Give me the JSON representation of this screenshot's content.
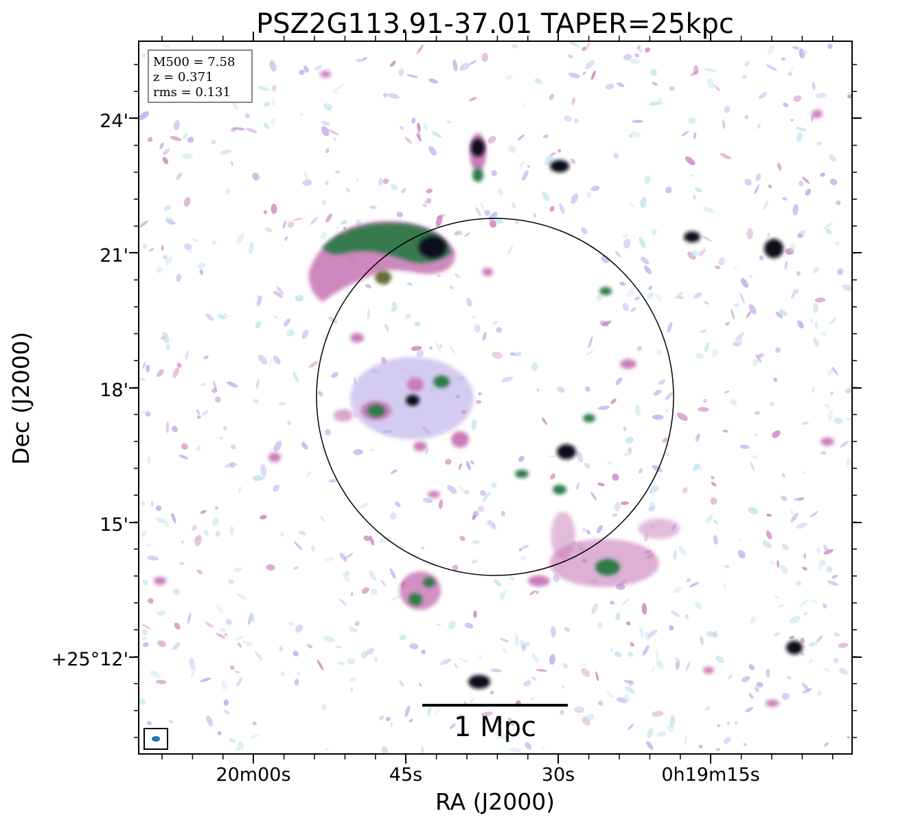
{
  "chart_data": {
    "type": "heatmap",
    "title": "PSZ2G113.91-37.01 TAPER=25kpc",
    "xlabel": "RA (J2000)",
    "ylabel": "Dec (J2000)",
    "x_ticks": [
      "20m00s",
      "45s",
      "30s",
      "0h19m15s"
    ],
    "y_ticks": [
      "24'",
      "21'",
      "18'",
      "15'",
      "+25°12'"
    ],
    "info_box": [
      "M500 = 7.58",
      "z = 0.371",
      "rms = 0.131"
    ],
    "scale_bar_label": "1 Mpc",
    "colormap": "cubehelix_r",
    "circle": {
      "ra_center": "0h19m37s",
      "dec_center": "+25°17'48\"",
      "radius_arcmin": 4.0
    },
    "sources": [
      {
        "name": "relic-north",
        "type": "extended"
      },
      {
        "name": "point-sources",
        "count": 14
      }
    ]
  },
  "colors": {
    "low": "#bfe3ec",
    "mid_low": "#b9a9e8",
    "mid": "#c97bb8",
    "mid_high": "#2f7a4a",
    "high": "#0b0b1a",
    "beam": "#1f77b4"
  }
}
